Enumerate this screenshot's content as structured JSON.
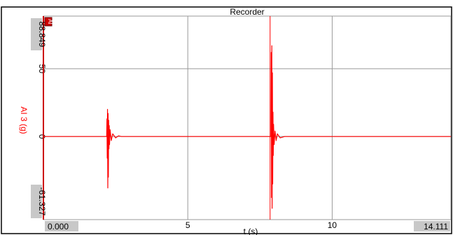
{
  "window_title": "Recorder",
  "chart_data": {
    "type": "line",
    "title": "Recorder",
    "xlabel": "t (s)",
    "ylabel": "AI 3 (g)",
    "xlim": [
      0.0,
      14.111
    ],
    "ylim": [
      -61.327,
      88.849
    ],
    "x_range_labels": {
      "min": "0.000",
      "max": "14.111"
    },
    "y_range_labels": {
      "min": "-61.327",
      "max": "88.849"
    },
    "x_ticks": [
      5,
      10
    ],
    "y_ticks": [
      0,
      50
    ],
    "grid": true,
    "cursor_x": 7.85,
    "corner_marker": "AI",
    "series": [
      {
        "color": "#ff0000",
        "x": [
          0.0,
          2.19,
          2.2,
          2.21,
          2.22,
          2.23,
          2.24,
          2.25,
          2.26,
          2.27,
          2.28,
          2.29,
          2.31,
          2.35,
          2.4,
          2.5,
          2.6,
          2.7,
          7.88,
          7.89,
          7.9,
          7.91,
          7.92,
          7.93,
          7.94,
          7.95,
          7.96,
          7.97,
          7.99,
          8.02,
          8.06,
          8.1,
          8.2,
          8.35,
          14.111
        ],
        "y": [
          0,
          0,
          13,
          -16,
          20,
          -38,
          17,
          -30,
          12,
          -9,
          8,
          -6,
          5,
          -3,
          2,
          -1,
          0.5,
          0,
          0,
          62,
          -45,
          67,
          -53,
          47,
          -35,
          18,
          -14,
          9,
          -6,
          4,
          -3,
          2,
          -1,
          0,
          0
        ]
      }
    ]
  }
}
